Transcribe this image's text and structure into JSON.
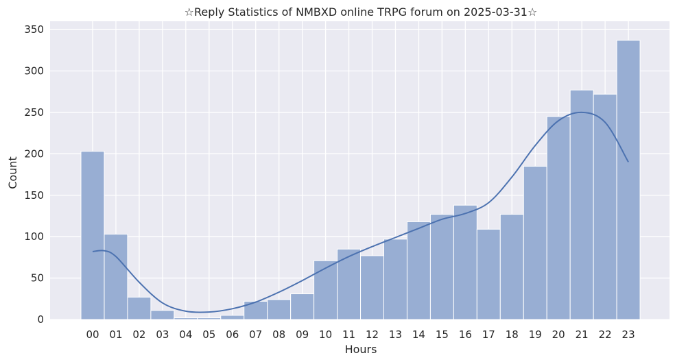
{
  "chart_data": {
    "type": "bar",
    "title": "☆Reply Statistics of NMBXD online TRPG forum on 2025-03-31☆",
    "xlabel": "Hours",
    "ylabel": "Count",
    "categories": [
      "00",
      "01",
      "02",
      "03",
      "04",
      "05",
      "06",
      "07",
      "08",
      "09",
      "10",
      "11",
      "12",
      "13",
      "14",
      "15",
      "16",
      "17",
      "18",
      "19",
      "20",
      "21",
      "22",
      "23"
    ],
    "values": [
      203,
      103,
      27,
      11,
      2,
      2,
      5,
      22,
      24,
      31,
      71,
      85,
      77,
      97,
      118,
      127,
      138,
      109,
      127,
      185,
      245,
      277,
      272,
      337
    ],
    "ylim": [
      0,
      360
    ],
    "yticks": [
      0,
      50,
      100,
      150,
      200,
      250,
      300,
      350
    ],
    "grid": true,
    "kde": [
      {
        "x": 0,
        "y": 82
      },
      {
        "x": 0.5,
        "y": 83
      },
      {
        "x": 1,
        "y": 76
      },
      {
        "x": 2,
        "y": 45
      },
      {
        "x": 3,
        "y": 20
      },
      {
        "x": 4,
        "y": 10
      },
      {
        "x": 5,
        "y": 9
      },
      {
        "x": 6,
        "y": 13
      },
      {
        "x": 7,
        "y": 21
      },
      {
        "x": 8,
        "y": 33
      },
      {
        "x": 9,
        "y": 47
      },
      {
        "x": 10,
        "y": 62
      },
      {
        "x": 11,
        "y": 76
      },
      {
        "x": 12,
        "y": 88
      },
      {
        "x": 13,
        "y": 99
      },
      {
        "x": 14,
        "y": 110
      },
      {
        "x": 15,
        "y": 121
      },
      {
        "x": 16,
        "y": 128
      },
      {
        "x": 17,
        "y": 141
      },
      {
        "x": 18,
        "y": 172
      },
      {
        "x": 19,
        "y": 210
      },
      {
        "x": 20,
        "y": 240
      },
      {
        "x": 21,
        "y": 250
      },
      {
        "x": 22,
        "y": 238
      },
      {
        "x": 23,
        "y": 190
      }
    ],
    "colors": {
      "bar_fill": "#98aed3",
      "bar_stroke": "#ffffff",
      "line": "#4c72b0",
      "plot_bg": "#eaeaf2",
      "grid": "#ffffff"
    }
  }
}
